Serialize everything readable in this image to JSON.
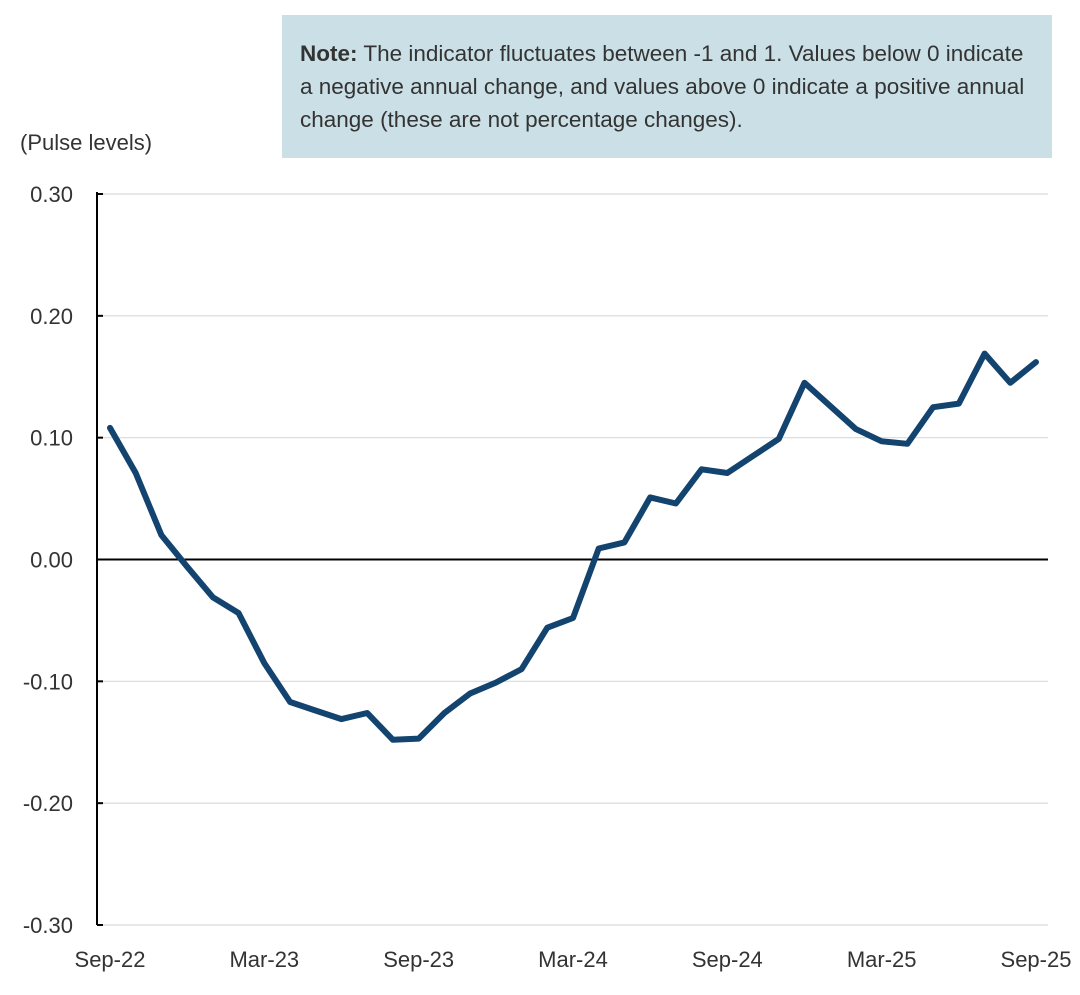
{
  "note": {
    "bold": "Note:",
    "text": " The indicator fluctuates between -1 and 1. Values below 0 indicate a negative annual change, and values above 0 indicate a positive annual change (these are not percentage changes)."
  },
  "chart_data": {
    "type": "line",
    "ylabel": "(Pulse levels)",
    "ylim": [
      -0.3,
      0.3
    ],
    "yticks": [
      "0.30",
      "0.20",
      "0.10",
      "0.00",
      "-0.10",
      "-0.20",
      "-0.30"
    ],
    "ytick_values": [
      0.3,
      0.2,
      0.1,
      0.0,
      -0.1,
      -0.2,
      -0.3
    ],
    "xticks": [
      "Sep-22",
      "Mar-23",
      "Sep-23",
      "Mar-24",
      "Sep-24",
      "Mar-25",
      "Sep-25"
    ],
    "grid": "horizontal",
    "line_color": "#13436f",
    "x": [
      "Sep-22",
      "Oct-22",
      "Nov-22",
      "Dec-22",
      "Jan-23",
      "Feb-23",
      "Mar-23",
      "Apr-23",
      "May-23",
      "Jun-23",
      "Jul-23",
      "Aug-23",
      "Sep-23",
      "Oct-23",
      "Nov-23",
      "Dec-23",
      "Jan-24",
      "Feb-24",
      "Mar-24",
      "Apr-24",
      "May-24",
      "Jun-24",
      "Jul-24",
      "Aug-24",
      "Sep-24",
      "Oct-24",
      "Nov-24",
      "Dec-24",
      "Jan-25",
      "Feb-25",
      "Mar-25",
      "Apr-25",
      "May-25",
      "Jun-25",
      "Jul-25",
      "Aug-25",
      "Sep-25"
    ],
    "series": [
      {
        "values": [
          0.108,
          0.071,
          0.02,
          -0.006,
          -0.031,
          -0.044,
          -0.085,
          -0.117,
          -0.124,
          -0.131,
          -0.126,
          -0.148,
          -0.147,
          -0.126,
          -0.11,
          -0.101,
          -0.09,
          -0.056,
          -0.048,
          0.009,
          0.014,
          0.051,
          0.046,
          0.074,
          0.071,
          0.085,
          0.099,
          0.145,
          0.126,
          0.107,
          0.097,
          0.095,
          0.125,
          0.128,
          0.169,
          0.145,
          0.162
        ]
      }
    ]
  }
}
